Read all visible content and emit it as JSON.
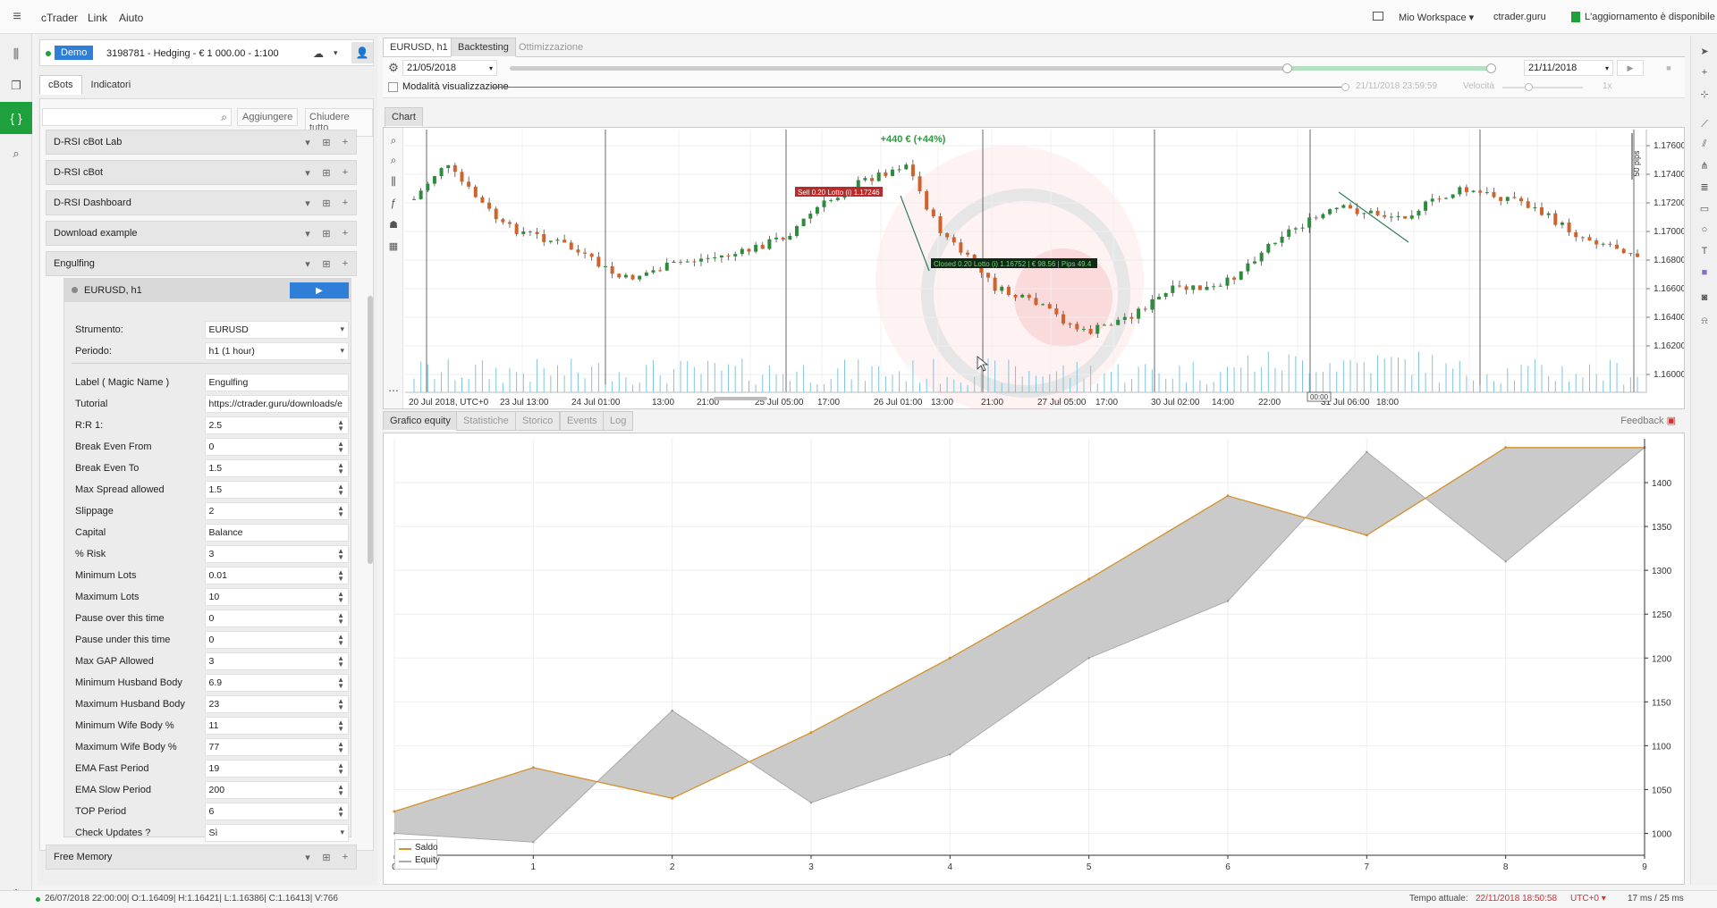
{
  "menubar": {
    "app": "cTrader",
    "link": "Link",
    "help": "Aiuto",
    "workspace": "Mio Workspace",
    "site": "ctrader.guru",
    "update": "L'aggiornamento è disponibile"
  },
  "account": {
    "type": "Demo",
    "info": "3198781 - Hedging - € 1 000.00 - 1:100"
  },
  "left_tabs": [
    "cBots",
    "Indicatori"
  ],
  "search": {
    "placeholder": "",
    "add": "Aggiungere",
    "close_all": "Chiudere tutto"
  },
  "bots": [
    "D-RSI cBot Lab",
    "D-RSI cBot",
    "D-RSI Dashboard",
    "Download example",
    "Engulfing"
  ],
  "bot_bottom": "Free Memory",
  "instance": {
    "name": "EURUSD, h1"
  },
  "params": [
    {
      "label": "Strumento:",
      "value": "EURUSD",
      "kind": "select"
    },
    {
      "label": "Periodo:",
      "value": "h1 (1 hour)",
      "kind": "select"
    },
    {
      "label": "Label ( Magic Name )",
      "value": "Engulfing",
      "kind": "text"
    },
    {
      "label": "Tutorial",
      "value": "https://ctrader.guru/downloads/e",
      "kind": "text"
    },
    {
      "label": "R:R 1:",
      "value": "2.5",
      "kind": "spin"
    },
    {
      "label": "Break Even From",
      "value": "0",
      "kind": "spin"
    },
    {
      "label": "Break Even To",
      "value": "1.5",
      "kind": "spin"
    },
    {
      "label": "Max Spread allowed",
      "value": "1.5",
      "kind": "spin"
    },
    {
      "label": "Slippage",
      "value": "2",
      "kind": "spin"
    },
    {
      "label": "Capital",
      "value": "Balance",
      "kind": "text"
    },
    {
      "label": "% Risk",
      "value": "3",
      "kind": "spin"
    },
    {
      "label": "Minimum Lots",
      "value": "0.01",
      "kind": "spin"
    },
    {
      "label": "Maximum Lots",
      "value": "10",
      "kind": "spin"
    },
    {
      "label": "Pause over this time",
      "value": "0",
      "kind": "spin"
    },
    {
      "label": "Pause under this time",
      "value": "0",
      "kind": "spin"
    },
    {
      "label": "Max GAP Allowed",
      "value": "3",
      "kind": "spin"
    },
    {
      "label": "Minimum Husband Body",
      "value": "6.9",
      "kind": "spin"
    },
    {
      "label": "Maximum Husband Body",
      "value": "23",
      "kind": "spin"
    },
    {
      "label": "Minimum Wife Body %",
      "value": "11",
      "kind": "spin"
    },
    {
      "label": "Maximum Wife Body %",
      "value": "77",
      "kind": "spin"
    },
    {
      "label": "EMA Fast Period",
      "value": "19",
      "kind": "spin"
    },
    {
      "label": "EMA Slow Period",
      "value": "200",
      "kind": "spin"
    },
    {
      "label": "TOP Period",
      "value": "6",
      "kind": "spin"
    },
    {
      "label": "Check Updates ?",
      "value": "Sì",
      "kind": "select"
    }
  ],
  "main_tabs": [
    "EURUSD, h1",
    "Backtesting",
    "Ottimizzazione"
  ],
  "backtest": {
    "from": "21/05/2018",
    "to": "21/11/2018",
    "visual_mode": "Modalità visualizzazione",
    "current": "21/11/2018 23:59:59",
    "speed_label": "Velocità",
    "speed": "1x"
  },
  "chart_tab": "Chart",
  "chart": {
    "profit": "+440 € (+44%)",
    "sell_label": "Sell 0.20 Lotto (i) 1.17246",
    "closed_label": "Closed 0.20 Lotto (i) 1.16752 | € 98.56 | Pips 49.4",
    "pips_label": "50 pips",
    "cursor_time": "00:00",
    "y_ticks": [
      "1.17600",
      "1.17400",
      "1.17200",
      "1.17000",
      "1.16800",
      "1.16600",
      "1.16400",
      "1.16200",
      "1.16000"
    ],
    "x_ticks": [
      "20 Jul 2018, UTC+0",
      "23 Jul 13:00",
      "24 Jul 01:00",
      "13:00",
      "21:00",
      "25 Jul 05:00",
      "17:00",
      "26 Jul 01:00",
      "13:00",
      "21:00",
      "27 Jul 05:00",
      "17:00",
      "30 Jul 02:00",
      "14:00",
      "22:00",
      "31 Jul 06:00",
      "18:00"
    ]
  },
  "bottom_tabs": [
    "Grafico equity",
    "Statistiche",
    "Storico",
    "Events",
    "Log"
  ],
  "feedback": "Feedback",
  "chart_data": {
    "type": "line",
    "x": [
      0,
      1,
      2,
      3,
      4,
      5,
      6,
      7,
      8,
      9
    ],
    "series": [
      {
        "name": "Saldo",
        "values": [
          1025,
          1075,
          1040,
          1115,
          1200,
          1290,
          1385,
          1340,
          1440,
          1440
        ],
        "color": "#d4912c"
      },
      {
        "name": "Equity",
        "values": [
          1000,
          990,
          1140,
          1035,
          1090,
          1200,
          1265,
          1435,
          1310,
          1440
        ],
        "color": "#aaaaaa"
      }
    ],
    "ylim": [
      975,
      1450
    ],
    "y_ticks": [
      1000,
      1050,
      1100,
      1150,
      1200,
      1250,
      1300,
      1350,
      1400
    ],
    "legend": "bottom-left"
  },
  "status": {
    "bar": "26/07/2018 22:00:00| O:1.16409| H:1.16421| L:1.16386| C:1.16413| V:766",
    "time_label": "Tempo attuale:",
    "time": "22/11/2018 18:50:58",
    "tz": "UTC+0",
    "latency": "17 ms / 25 ms"
  }
}
